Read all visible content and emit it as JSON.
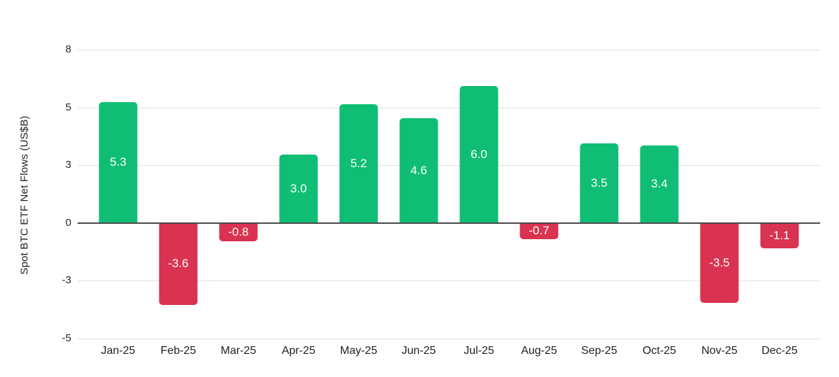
{
  "chart_data": {
    "type": "bar",
    "title": "",
    "xlabel": "",
    "ylabel": "Spot BTC ETF Net Flows (US$B)",
    "categories": [
      "Jan-25",
      "Feb-25",
      "Mar-25",
      "Apr-25",
      "May-25",
      "Jun-25",
      "Jul-25",
      "Aug-25",
      "Sep-25",
      "Oct-25",
      "Nov-25",
      "Dec-25"
    ],
    "values": [
      5.3,
      -3.6,
      -0.8,
      3.0,
      5.2,
      4.6,
      6.0,
      -0.7,
      3.5,
      3.4,
      -3.5,
      -1.1
    ],
    "value_labels": [
      "5.3",
      "-3.6",
      "-0.8",
      "3.0",
      "5.2",
      "4.6",
      "6.0",
      "-0.7",
      "3.5",
      "3.4",
      "-3.5",
      "-1.1"
    ],
    "yticks": [
      8,
      5,
      3,
      0,
      -3,
      -5
    ],
    "ylim": [
      -5,
      8
    ],
    "grid": true,
    "legend_position": "none",
    "colors": {
      "positive_bar": "#0fbe74",
      "negative_bar": "#d93351",
      "gridline": "#e0e0e0",
      "zero_line": "#4a4a4a",
      "bar_value_text": "#ffffff",
      "tick_text": "#262626"
    }
  }
}
